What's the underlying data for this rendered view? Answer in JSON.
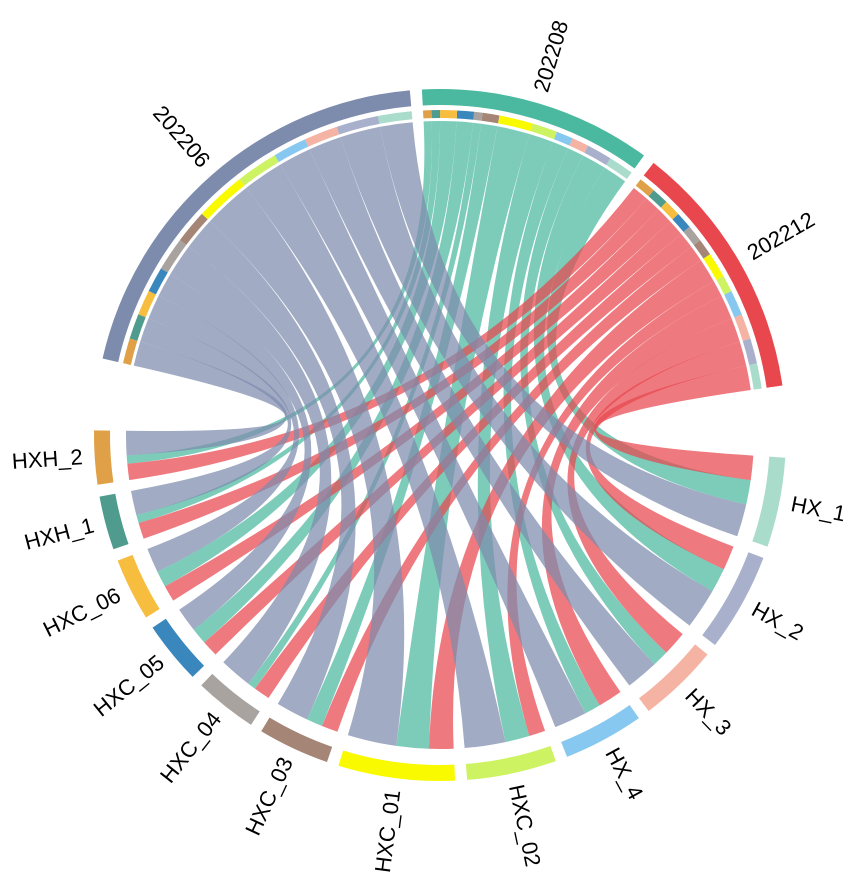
{
  "chart_data": {
    "type": "chord",
    "categories": [
      "HX_1",
      "HX_2",
      "HX_3",
      "HX_4",
      "HXC_02",
      "HXC_01",
      "HXC_03",
      "HXC_04",
      "HXC_05",
      "HXC_06",
      "HXH_1",
      "HXH_2"
    ],
    "category_colors": [
      "#a9dccb",
      "#a9b0cc",
      "#f4b3a3",
      "#86c8ef",
      "#cdf262",
      "#f9f900",
      "#a48576",
      "#a8a39f",
      "#3a87bd",
      "#f6bd3e",
      "#4f9c8e",
      "#e0a047"
    ],
    "series": [
      {
        "name": "202208",
        "color": "#4bb9a0",
        "values": [
          3,
          3,
          2,
          2,
          3,
          4,
          2,
          1,
          2,
          2,
          1,
          1
        ]
      },
      {
        "name": "202212",
        "color": "#e8474e",
        "values": [
          3,
          3,
          3,
          3,
          2,
          3,
          2,
          2,
          2,
          2,
          2,
          2
        ]
      },
      {
        "name": "202206",
        "color": "#7d8bad",
        "values": [
          4,
          5,
          4,
          4,
          5,
          6,
          4,
          4,
          3,
          3,
          3,
          3
        ]
      }
    ]
  }
}
